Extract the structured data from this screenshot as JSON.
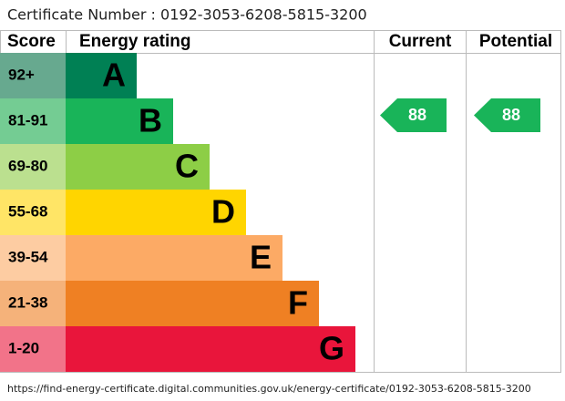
{
  "header": {
    "certificate": "Certificate Number : 0192-3053-6208-5815-3200"
  },
  "table": {
    "columns": [
      "Score",
      "Energy rating",
      "Current",
      "Potential"
    ],
    "rows": [
      [
        "92+",
        "A"
      ],
      [
        "81-91",
        "B"
      ],
      [
        "69-80",
        "C"
      ],
      [
        "55-68",
        "D"
      ],
      [
        "39-54",
        "E"
      ],
      [
        "21-38",
        "F"
      ],
      [
        "1-20",
        "G"
      ]
    ]
  },
  "current": "88",
  "potential": "88",
  "footer": {
    "url": "https://find-energy-certificate.digital.communities.gov.uk/energy-certificate/0192-3053-6208-5815-3200"
  }
}
